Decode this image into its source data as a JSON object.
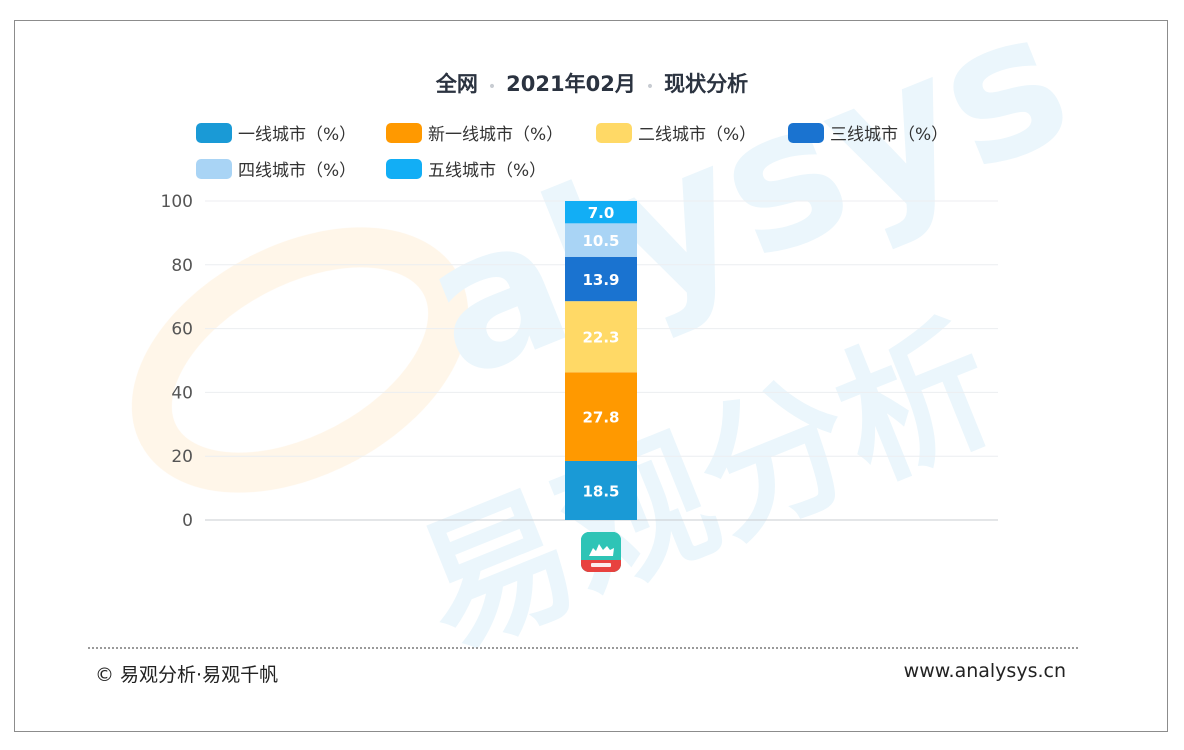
{
  "page": {
    "title_part1": "全网",
    "title_part2": "2021年02月",
    "title_part3": "现状分析",
    "title_separator": "•",
    "footer_left": "© 易观分析·易观千帆",
    "footer_right": "www.analysys.cn",
    "app_icon_name": "camel-app-icon"
  },
  "chart_data": {
    "type": "bar",
    "stacked": true,
    "title": "全网 • 2021年02月 • 现状分析",
    "xlabel": "",
    "ylabel": "",
    "ylim": [
      0,
      100
    ],
    "yticks": [
      0,
      20,
      40,
      60,
      80,
      100
    ],
    "grid": true,
    "legend_position": "top",
    "categories": [
      ""
    ],
    "series": [
      {
        "name": "一线城市（%）",
        "color": "#1a9ad6",
        "values": [
          18.5
        ]
      },
      {
        "name": "新一线城市（%）",
        "color": "#ff9900",
        "values": [
          27.8
        ]
      },
      {
        "name": "二线城市（%）",
        "color": "#ffd966",
        "values": [
          22.3
        ]
      },
      {
        "name": "三线城市（%）",
        "color": "#1a73d0",
        "values": [
          13.9
        ]
      },
      {
        "name": "四线城市（%）",
        "color": "#a9d4f5",
        "values": [
          10.5
        ]
      },
      {
        "name": "五线城市（%）",
        "color": "#12aef5",
        "values": [
          7.0
        ]
      }
    ]
  }
}
